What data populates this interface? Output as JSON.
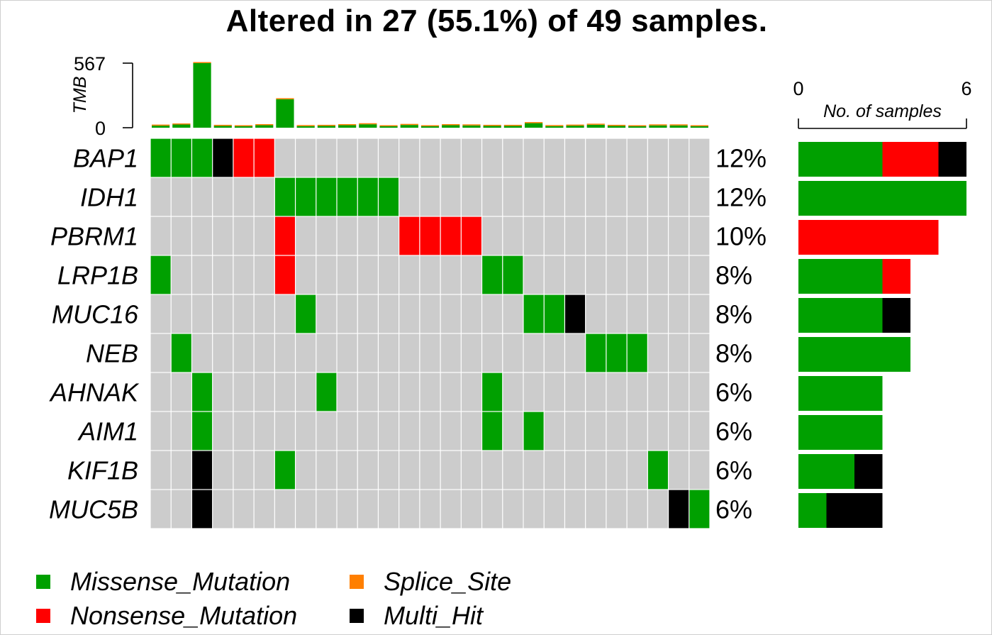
{
  "chart_data": {
    "type": "oncoplot",
    "title": "Altered in 27 (55.1%) of 49 samples.",
    "tmb": {
      "label": "TMB",
      "ylim": [
        0,
        567
      ],
      "tick_labels": [
        "567",
        "0"
      ],
      "values": [
        18,
        28,
        567,
        16,
        10,
        22,
        250,
        14,
        16,
        22,
        30,
        10,
        24,
        10,
        22,
        20,
        16,
        16,
        40,
        14,
        18,
        26,
        16,
        12,
        20,
        20,
        12
      ]
    },
    "genes": [
      "BAP1",
      "IDH1",
      "PBRM1",
      "LRP1B",
      "MUC16",
      "NEB",
      "AHNAK",
      "AIM1",
      "KIF1B",
      "MUC5B"
    ],
    "percentages": [
      "12%",
      "12%",
      "10%",
      "8%",
      "8%",
      "8%",
      "6%",
      "6%",
      "6%",
      "6%"
    ],
    "n_columns": 27,
    "matrix": [
      [
        "M",
        "M",
        "M",
        "H",
        "N",
        "N",
        "",
        "",
        "",
        "",
        "",
        "",
        "",
        "",
        "",
        "",
        "",
        "",
        "",
        "",
        "",
        "",
        "",
        "",
        "",
        "",
        ""
      ],
      [
        "",
        "",
        "",
        "",
        "",
        "",
        "M",
        "M",
        "M",
        "M",
        "M",
        "M",
        "",
        "",
        "",
        "",
        "",
        "",
        "",
        "",
        "",
        "",
        "",
        "",
        "",
        "",
        ""
      ],
      [
        "",
        "",
        "",
        "",
        "",
        "",
        "N",
        "",
        "",
        "",
        "",
        "",
        "N",
        "N",
        "N",
        "N",
        "",
        "",
        "",
        "",
        "",
        "",
        "",
        "",
        "",
        "",
        ""
      ],
      [
        "M",
        "",
        "",
        "",
        "",
        "",
        "N",
        "",
        "",
        "",
        "",
        "",
        "",
        "",
        "",
        "",
        "M",
        "M",
        "",
        "",
        "",
        "",
        "",
        "",
        "",
        "",
        ""
      ],
      [
        "",
        "",
        "",
        "",
        "",
        "",
        "",
        "M",
        "",
        "",
        "",
        "",
        "",
        "",
        "",
        "",
        "",
        "",
        "M",
        "M",
        "H",
        "",
        "",
        "",
        "",
        "",
        ""
      ],
      [
        "",
        "M",
        "",
        "",
        "",
        "",
        "",
        "",
        "",
        "",
        "",
        "",
        "",
        "",
        "",
        "",
        "",
        "",
        "",
        "",
        "",
        "M",
        "M",
        "M",
        "",
        "",
        ""
      ],
      [
        "",
        "",
        "M",
        "",
        "",
        "",
        "",
        "",
        "M",
        "",
        "",
        "",
        "",
        "",
        "",
        "",
        "M",
        "",
        "",
        "",
        "",
        "",
        "",
        "",
        "",
        "",
        ""
      ],
      [
        "",
        "",
        "M",
        "",
        "",
        "",
        "",
        "",
        "",
        "",
        "",
        "",
        "",
        "",
        "",
        "",
        "M",
        "",
        "M",
        "",
        "",
        "",
        "",
        "",
        "",
        "",
        ""
      ],
      [
        "",
        "",
        "H",
        "",
        "",
        "",
        "M",
        "",
        "",
        "",
        "",
        "",
        "",
        "",
        "",
        "",
        "",
        "",
        "",
        "",
        "",
        "",
        "",
        "",
        "M",
        "",
        ""
      ],
      [
        "",
        "",
        "H",
        "",
        "",
        "",
        "",
        "",
        "",
        "",
        "",
        "",
        "",
        "",
        "",
        "",
        "",
        "",
        "",
        "",
        "",
        "",
        "",
        "",
        "",
        "H",
        "M"
      ]
    ],
    "side_bar": {
      "xlabel": "No. of samples",
      "xlim": [
        0,
        6
      ],
      "tick_labels": [
        "0",
        "6"
      ],
      "counts": [
        {
          "M": 3,
          "N": 2,
          "H": 1
        },
        {
          "M": 6
        },
        {
          "N": 5
        },
        {
          "M": 3,
          "N": 1
        },
        {
          "M": 3,
          "H": 1
        },
        {
          "M": 4
        },
        {
          "M": 3
        },
        {
          "M": 3
        },
        {
          "M": 2,
          "H": 1
        },
        {
          "M": 1,
          "H": 2
        }
      ]
    },
    "legend": [
      {
        "key": "M",
        "label": "Missense_Mutation"
      },
      {
        "key": "S",
        "label": "Splice_Site"
      },
      {
        "key": "N",
        "label": "Nonsense_Mutation"
      },
      {
        "key": "H",
        "label": "Multi_Hit"
      }
    ],
    "colors": {
      "M": "#00a000",
      "N": "#ff0000",
      "S": "#ff7f00",
      "H": "#000000",
      "background": "#cccccc"
    }
  }
}
